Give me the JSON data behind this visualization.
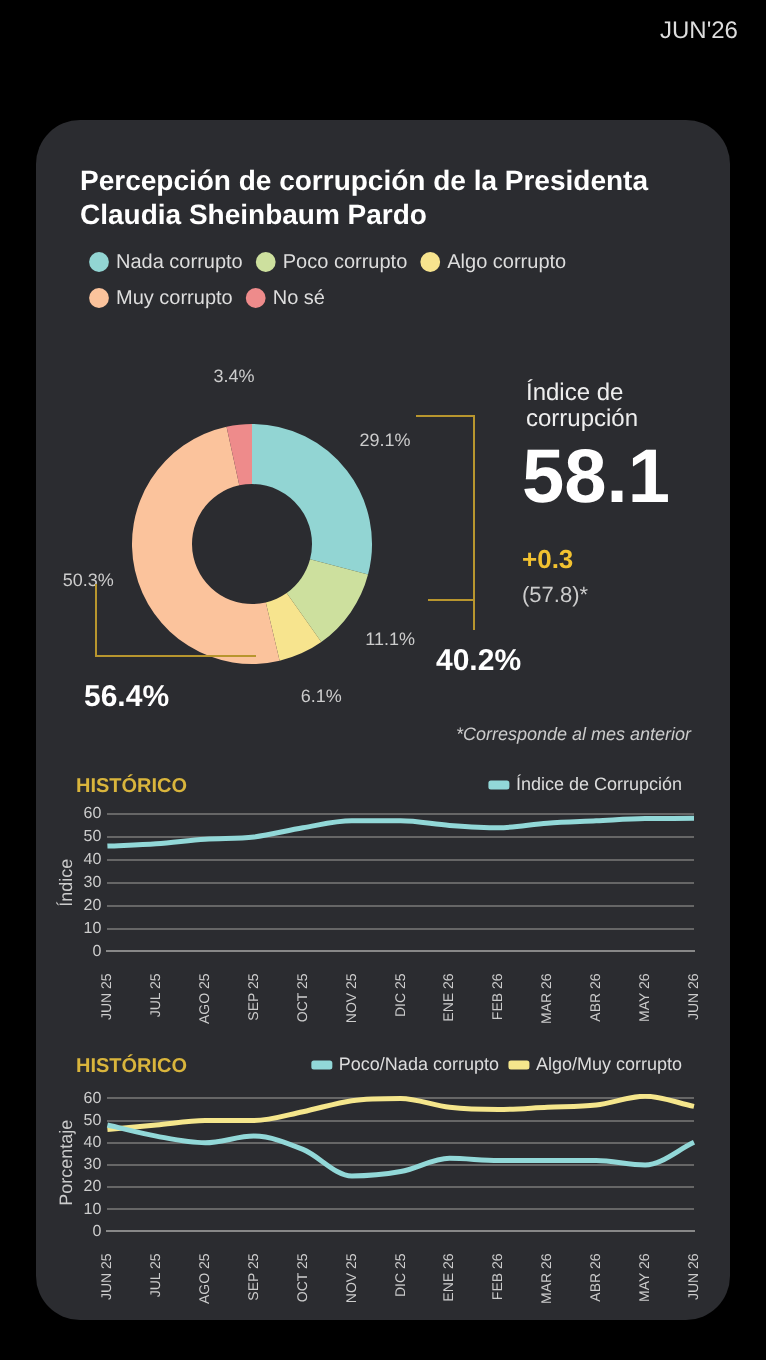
{
  "chart_data": [
    {
      "type": "donut",
      "title": "Percepción de corrupción de la Presidenta Claudia Sheinbaum Pardo",
      "categories": [
        "Nada corrupto",
        "Poco corrupto",
        "Algo corrupto",
        "Muy corrupto",
        "No sé"
      ],
      "values": [
        29.1,
        11.1,
        6.1,
        50.3,
        3.4
      ],
      "colors": [
        "#92d5d3",
        "#cde09e",
        "#f7e48e",
        "#fbc39c",
        "#ee8b8b"
      ],
      "value_labels": [
        "29.1%",
        "11.1%",
        "6.1%",
        "50.3%",
        "3.4%"
      ],
      "legend": "top",
      "annotations": [
        "JUN'26",
        "Índice de corrupción",
        "58.1",
        "+0.3",
        "(57.8)*",
        "40.2%",
        "56.4%",
        "*Corresponde al mes anterior"
      ]
    },
    {
      "type": "line",
      "title": "HISTÓRICO",
      "ylabel": "Índice",
      "categories": [
        "JUN 25",
        "JUL 25",
        "AGO 25",
        "SEP 25",
        "OCT 25",
        "NOV 25",
        "DIC 25",
        "ENE 26",
        "FEB 26",
        "MAR 26",
        "ABR 26",
        "MAY 26",
        "JUN 26"
      ],
      "series": [
        {
          "name": "Índice de Corrupción",
          "color": "#92d8d8",
          "values": [
            46,
            47,
            49,
            50,
            54,
            57,
            57,
            55,
            54,
            56,
            57,
            58,
            58.1
          ]
        }
      ],
      "ylim": [
        0,
        60
      ],
      "yticks": [
        0,
        10,
        20,
        30,
        40,
        50,
        60
      ],
      "grid": "y",
      "legend": "top right",
      "marker": "none"
    },
    {
      "type": "line",
      "title": "HISTÓRICO",
      "ylabel": "Porcentaje",
      "categories": [
        "JUN 25",
        "JUL 25",
        "AGO 25",
        "SEP 25",
        "OCT 25",
        "NOV 25",
        "DIC 25",
        "ENE 26",
        "FEB 26",
        "MAR 26",
        "ABR 26",
        "MAY 26",
        "JUN 26"
      ],
      "series": [
        {
          "name": "Poco/Nada corrupto",
          "color": "#92d8d8",
          "values": [
            48,
            43,
            40,
            43,
            37,
            25,
            27,
            33,
            32,
            32,
            32,
            30,
            40.2
          ]
        },
        {
          "name": "Algo/Muy corrupto",
          "color": "#f5e68c",
          "values": [
            46,
            48,
            50,
            50,
            54,
            59,
            60,
            56,
            55,
            56,
            57,
            61,
            56.4
          ]
        }
      ],
      "ylim": [
        0,
        62
      ],
      "yticks": [
        0,
        10,
        20,
        30,
        40,
        50,
        60
      ],
      "grid": "y",
      "legend": "top right",
      "marker": "none"
    }
  ]
}
